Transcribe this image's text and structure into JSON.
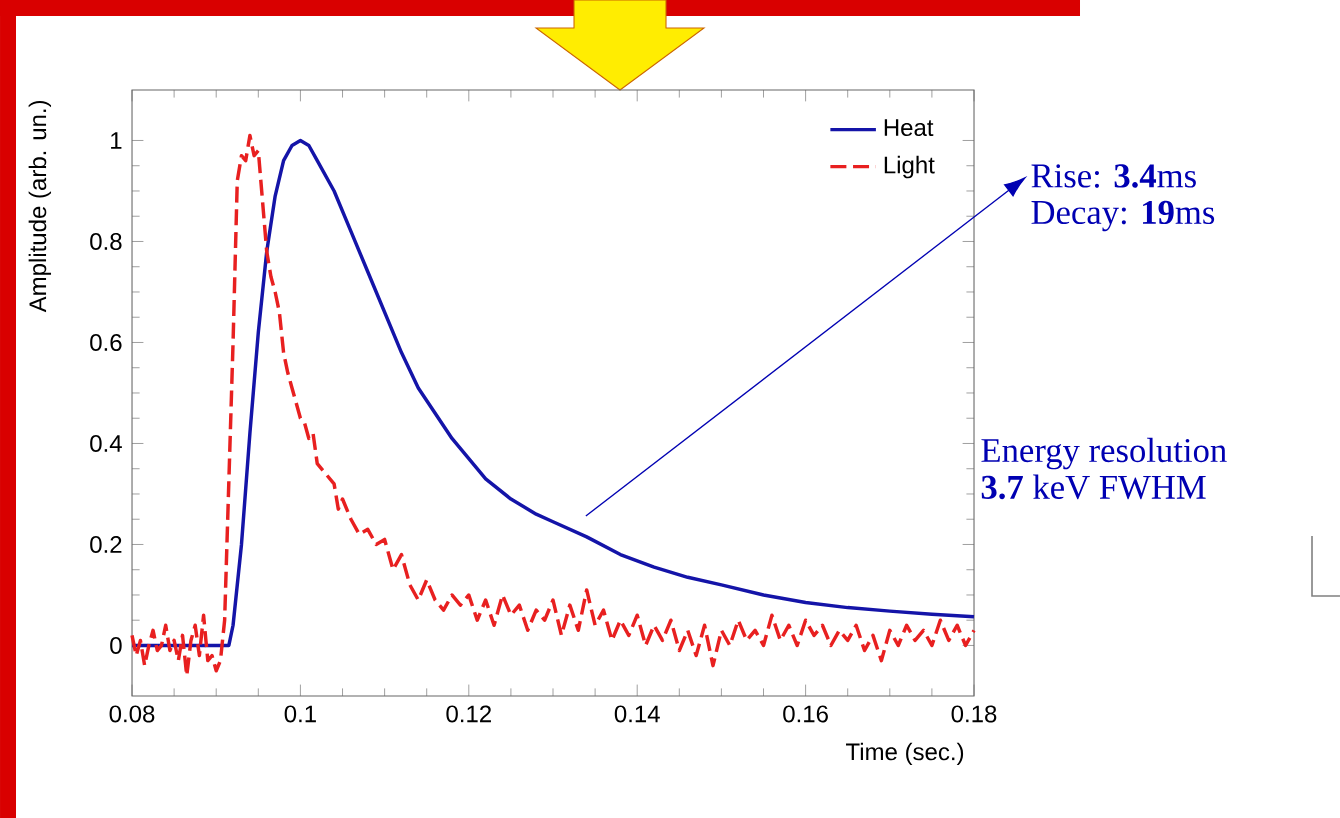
{
  "chart_data": {
    "type": "line",
    "xlabel": "Time (sec.)",
    "ylabel": "Amplitude (arb. un.)",
    "xlim": [
      0.08,
      0.18
    ],
    "ylim": [
      -0.1,
      1.1
    ],
    "xticks": [
      0.08,
      0.1,
      0.12,
      0.14,
      0.16,
      0.18
    ],
    "yticks": [
      0,
      0.2,
      0.4,
      0.6,
      0.8,
      1
    ],
    "legend": "top right",
    "grid": false,
    "series": [
      {
        "name": "Heat",
        "color": "#1414a8",
        "line_style": "solid",
        "x": [
          0.08,
          0.0915,
          0.092,
          0.093,
          0.094,
          0.095,
          0.096,
          0.097,
          0.098,
          0.099,
          0.1,
          0.101,
          0.102,
          0.104,
          0.106,
          0.108,
          0.11,
          0.112,
          0.114,
          0.116,
          0.118,
          0.12,
          0.122,
          0.125,
          0.128,
          0.13,
          0.134,
          0.138,
          0.142,
          0.146,
          0.15,
          0.155,
          0.16,
          0.165,
          0.17,
          0.175,
          0.18
        ],
        "values": [
          0,
          0,
          0.04,
          0.2,
          0.42,
          0.62,
          0.78,
          0.89,
          0.96,
          0.99,
          1.0,
          0.99,
          0.96,
          0.9,
          0.82,
          0.74,
          0.66,
          0.58,
          0.51,
          0.46,
          0.41,
          0.37,
          0.33,
          0.29,
          0.26,
          0.245,
          0.215,
          0.18,
          0.155,
          0.135,
          0.12,
          0.1,
          0.085,
          0.075,
          0.068,
          0.062,
          0.057
        ]
      },
      {
        "name": "Light",
        "color": "#e82020",
        "line_style": "dashed",
        "x": [
          0.08,
          0.0805,
          0.081,
          0.0815,
          0.082,
          0.0825,
          0.083,
          0.0835,
          0.084,
          0.0845,
          0.085,
          0.0855,
          0.086,
          0.0865,
          0.087,
          0.0875,
          0.088,
          0.0885,
          0.089,
          0.0895,
          0.09,
          0.0905,
          0.091,
          0.092,
          0.0925,
          0.093,
          0.0935,
          0.094,
          0.0945,
          0.095,
          0.0955,
          0.096,
          0.0965,
          0.097,
          0.0975,
          0.098,
          0.0985,
          0.099,
          0.0995,
          0.1,
          0.1005,
          0.101,
          0.1015,
          0.102,
          0.103,
          0.104,
          0.1045,
          0.105,
          0.106,
          0.107,
          0.108,
          0.109,
          0.11,
          0.111,
          0.112,
          0.113,
          0.114,
          0.115,
          0.116,
          0.117,
          0.118,
          0.119,
          0.12,
          0.121,
          0.122,
          0.123,
          0.124,
          0.125,
          0.126,
          0.127,
          0.128,
          0.129,
          0.13,
          0.131,
          0.132,
          0.133,
          0.134,
          0.135,
          0.136,
          0.137,
          0.138,
          0.139,
          0.14,
          0.141,
          0.142,
          0.143,
          0.144,
          0.145,
          0.146,
          0.147,
          0.148,
          0.149,
          0.15,
          0.151,
          0.152,
          0.153,
          0.154,
          0.155,
          0.156,
          0.157,
          0.158,
          0.159,
          0.16,
          0.161,
          0.162,
          0.163,
          0.164,
          0.165,
          0.166,
          0.167,
          0.168,
          0.169,
          0.17,
          0.171,
          0.172,
          0.173,
          0.174,
          0.175,
          0.176,
          0.177,
          0.178,
          0.179,
          0.18
        ],
        "values": [
          0.02,
          -0.02,
          0.01,
          -0.04,
          0.0,
          0.03,
          -0.01,
          0.0,
          0.04,
          -0.01,
          0.01,
          -0.03,
          0.02,
          -0.06,
          0.01,
          0.04,
          -0.02,
          0.06,
          -0.03,
          -0.02,
          -0.05,
          -0.03,
          0.05,
          0.6,
          0.92,
          0.97,
          0.96,
          1.01,
          0.97,
          0.98,
          0.88,
          0.78,
          0.73,
          0.7,
          0.66,
          0.58,
          0.54,
          0.51,
          0.48,
          0.45,
          0.44,
          0.41,
          0.42,
          0.36,
          0.34,
          0.32,
          0.27,
          0.29,
          0.25,
          0.22,
          0.23,
          0.2,
          0.21,
          0.15,
          0.18,
          0.12,
          0.09,
          0.13,
          0.09,
          0.07,
          0.1,
          0.08,
          0.1,
          0.05,
          0.09,
          0.04,
          0.1,
          0.06,
          0.08,
          0.03,
          0.07,
          0.05,
          0.09,
          0.02,
          0.08,
          0.03,
          0.11,
          0.04,
          0.07,
          0.01,
          0.05,
          0.02,
          0.06,
          0.0,
          0.04,
          0.01,
          0.05,
          -0.01,
          0.03,
          -0.02,
          0.04,
          -0.04,
          0.03,
          0.0,
          0.05,
          0.01,
          0.03,
          0.0,
          0.06,
          0.01,
          0.04,
          0.0,
          0.05,
          0.02,
          0.04,
          0.0,
          0.03,
          0.01,
          0.04,
          -0.01,
          0.02,
          -0.03,
          0.03,
          0.0,
          0.04,
          0.01,
          0.03,
          0.0,
          0.05,
          0.01,
          0.04,
          0.0,
          0.03
        ]
      }
    ],
    "annotations": [
      "Rise: **3.4**ms",
      "Decay: **19**ms",
      "Energy resolution",
      "**3.7** keV FWHM"
    ]
  }
}
